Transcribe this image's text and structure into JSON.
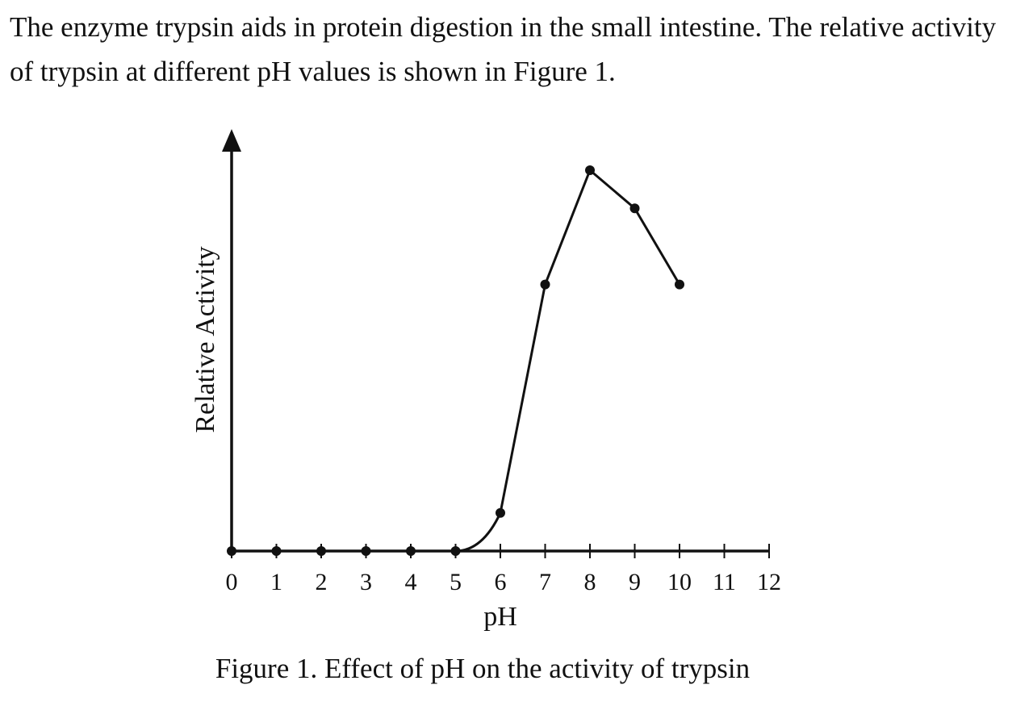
{
  "intro_text": "The enzyme trypsin aids in protein digestion in the small intestine. The relative activity of trypsin at different pH values is shown in Figure 1.",
  "chart_data": {
    "type": "line",
    "title": "",
    "caption": "Figure 1. Effect of pH on the activity of trypsin",
    "xlabel": "pH",
    "ylabel": "Relative Activity",
    "xlim": [
      0,
      12
    ],
    "ylim": [
      0,
      1.06
    ],
    "x_ticks": [
      0,
      1,
      2,
      3,
      4,
      5,
      6,
      7,
      8,
      9,
      10,
      11,
      12
    ],
    "y_ticks": [],
    "grid": false,
    "legend": "none",
    "series": [
      {
        "x": [
          0,
          1,
          2,
          3,
          4,
          5,
          6,
          7,
          8,
          9,
          10
        ],
        "y": [
          0,
          0,
          0,
          0,
          0,
          0,
          0.1,
          0.7,
          1.0,
          0.9,
          0.7
        ]
      }
    ]
  }
}
